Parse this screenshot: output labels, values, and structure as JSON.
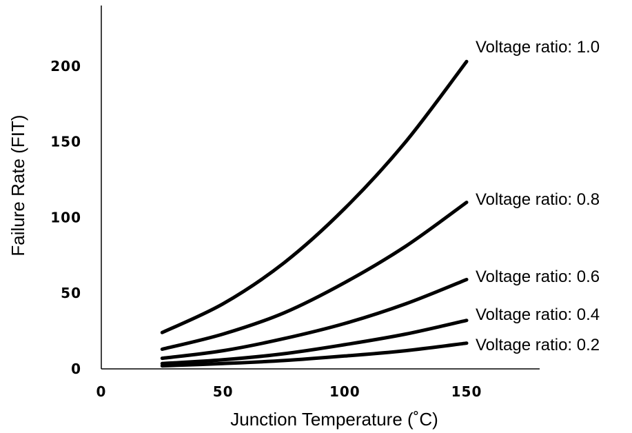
{
  "chart_data": {
    "type": "line",
    "xlabel": "Junction Temperature (˚C)",
    "ylabel": "Failure Rate (FIT)",
    "xlim": [
      0,
      180
    ],
    "ylim": [
      0,
      240
    ],
    "xticks": [
      0,
      50,
      100,
      150
    ],
    "yticks": [
      0,
      50,
      100,
      150,
      200
    ],
    "grid": false,
    "legend": "inline labels at right end of each line",
    "line_color": "#000000",
    "x": [
      25,
      50,
      75,
      100,
      125,
      150
    ],
    "series": [
      {
        "name": "Voltage ratio: 1.0",
        "values": [
          24,
          43,
          70,
          106,
          150,
          203
        ]
      },
      {
        "name": "Voltage ratio: 0.8",
        "values": [
          13,
          23,
          37,
          57,
          81,
          110
        ]
      },
      {
        "name": "Voltage ratio: 0.6",
        "values": [
          7,
          12,
          20,
          30,
          43,
          59
        ]
      },
      {
        "name": "Voltage ratio: 0.4",
        "values": [
          3.5,
          6,
          10,
          16,
          23,
          32
        ]
      },
      {
        "name": "Voltage ratio: 0.2",
        "values": [
          2,
          3.5,
          5.5,
          8.5,
          12,
          17
        ]
      }
    ]
  }
}
